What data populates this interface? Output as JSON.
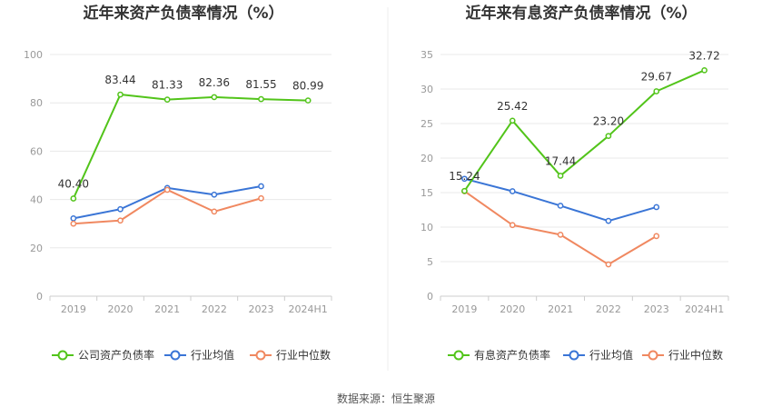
{
  "footer": {
    "source": "数据来源：恒生聚源"
  },
  "chart_data": [
    {
      "type": "line",
      "title": "近年来资产负债率情况（%）",
      "categories": [
        "2019",
        "2020",
        "2021",
        "2022",
        "2023",
        "2024H1"
      ],
      "ylim": [
        0,
        100
      ],
      "yticks": [
        0,
        20,
        40,
        60,
        80,
        100
      ],
      "grid": true,
      "legend_position": "bottom",
      "series": [
        {
          "name": "公司资产负债率",
          "color": "#52c41a",
          "values": [
            40.4,
            83.44,
            81.33,
            82.36,
            81.55,
            80.99
          ],
          "labels": [
            "40.40",
            "83.44",
            "81.33",
            "82.36",
            "81.55",
            "80.99"
          ]
        },
        {
          "name": "行业均值",
          "color": "#3a75d6",
          "values": [
            32.2,
            36.0,
            44.8,
            42.0,
            45.5,
            null
          ]
        },
        {
          "name": "行业中位数",
          "color": "#f08860",
          "values": [
            30.0,
            31.3,
            44.0,
            35.0,
            40.5,
            null
          ]
        }
      ]
    },
    {
      "type": "line",
      "title": "近年来有息资产负债率情况（%）",
      "categories": [
        "2019",
        "2020",
        "2021",
        "2022",
        "2023",
        "2024H1"
      ],
      "ylim": [
        0,
        35
      ],
      "yticks": [
        0,
        5,
        10,
        15,
        20,
        25,
        30,
        35
      ],
      "grid": true,
      "legend_position": "bottom",
      "series": [
        {
          "name": "有息资产负债率",
          "color": "#52c41a",
          "values": [
            15.24,
            25.42,
            17.44,
            23.2,
            29.67,
            32.72
          ],
          "labels": [
            "15.24",
            "25.42",
            "17.44",
            "23.20",
            "29.67",
            "32.72"
          ]
        },
        {
          "name": "行业均值",
          "color": "#3a75d6",
          "values": [
            17.0,
            15.2,
            13.1,
            10.9,
            12.9,
            null
          ]
        },
        {
          "name": "行业中位数",
          "color": "#f08860",
          "values": [
            15.2,
            10.3,
            8.9,
            4.6,
            8.7,
            null
          ]
        }
      ]
    }
  ]
}
